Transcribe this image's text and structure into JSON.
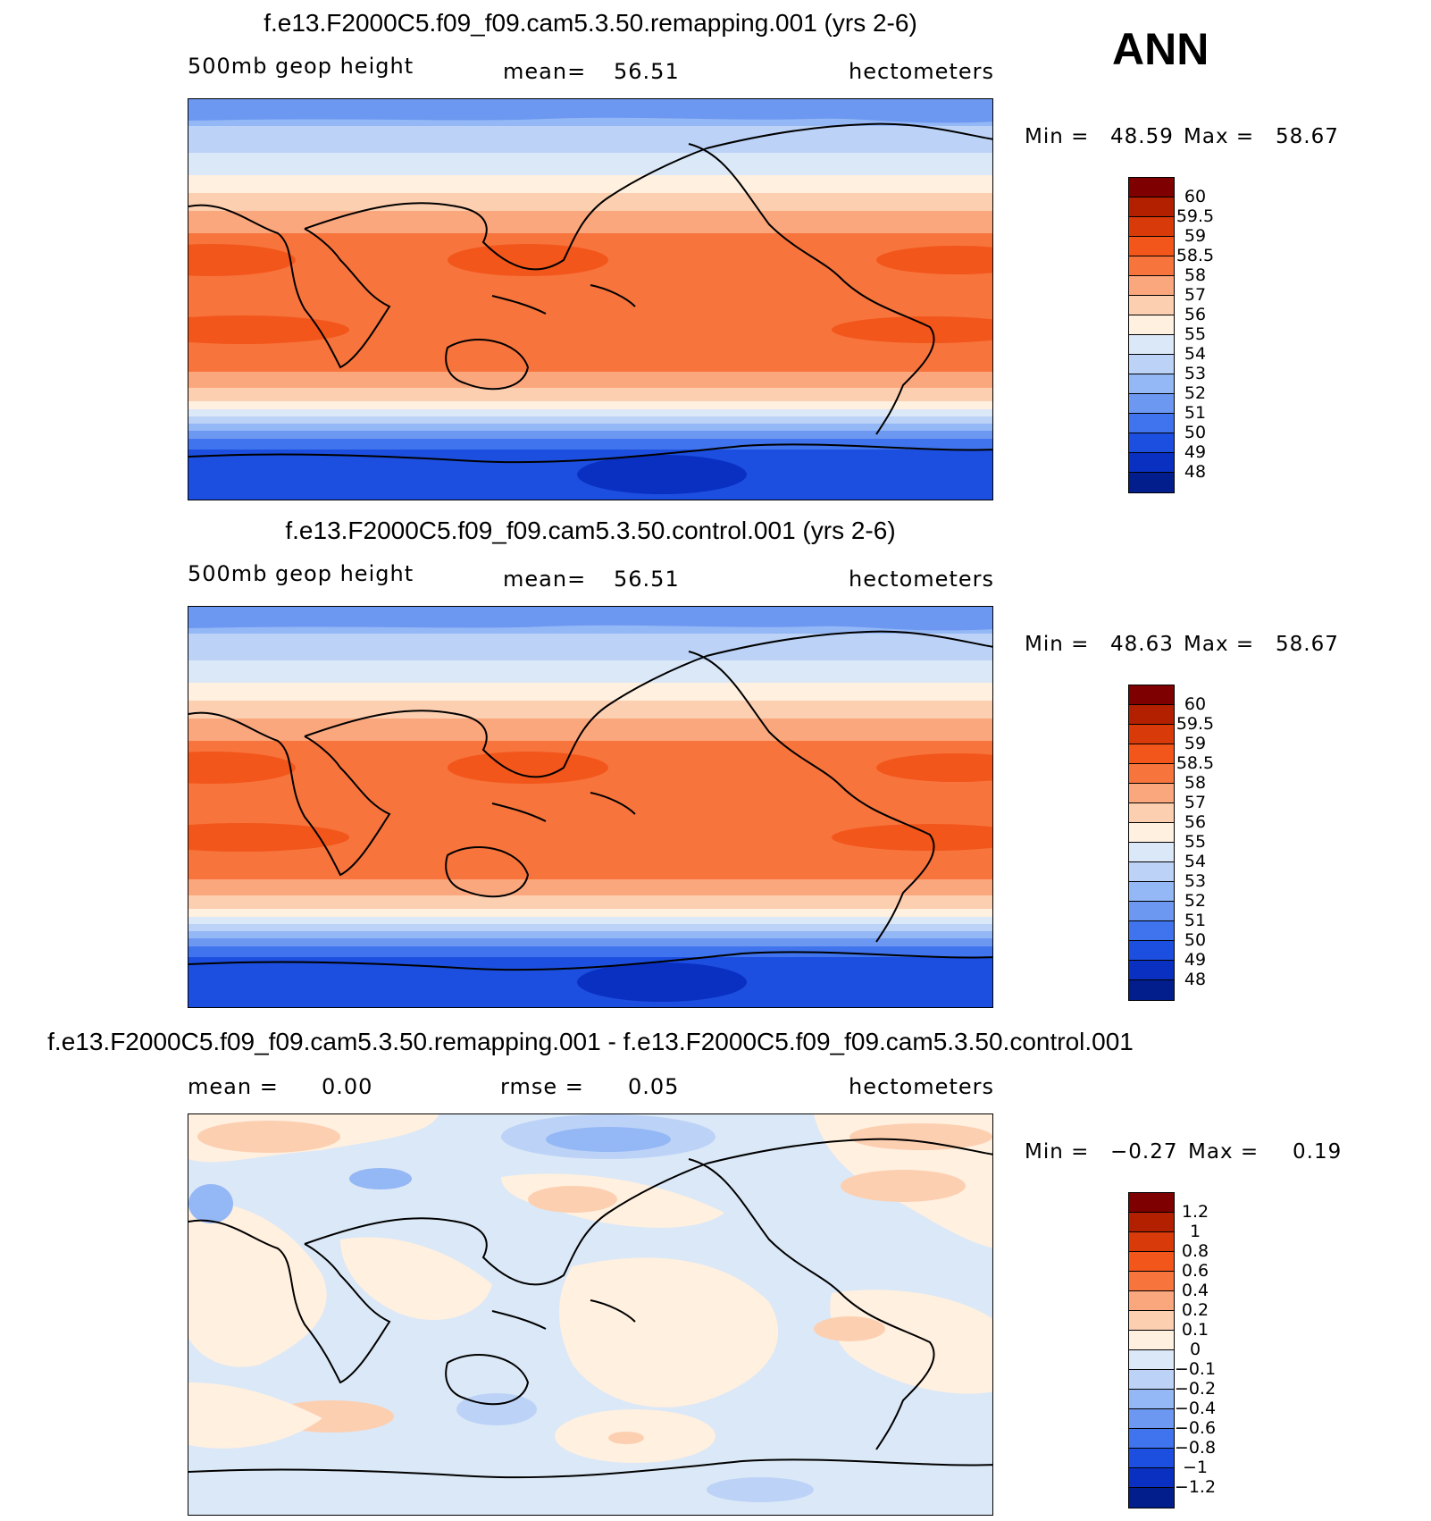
{
  "season": "ANN",
  "panels": [
    {
      "title": "f.e13.F2000C5.f09_f09.cam5.3.50.remapping.001 (yrs 2-6)",
      "left_label": "500mb geop height",
      "stat_label": "mean=",
      "stat_value": "56.51",
      "units": "hectometers",
      "min_label": "Min =",
      "min_value": "48.59",
      "max_label": "Max =",
      "max_value": "58.67"
    },
    {
      "title": "f.e13.F2000C5.f09_f09.cam5.3.50.control.001 (yrs 2-6)",
      "left_label": "500mb geop height",
      "stat_label": "mean=",
      "stat_value": "56.51",
      "units": "hectometers",
      "min_label": "Min =",
      "min_value": "48.63",
      "max_label": "Max =",
      "max_value": "58.67"
    },
    {
      "title": "f.e13.F2000C5.f09_f09.cam5.3.50.remapping.001 - f.e13.F2000C5.f09_f09.cam5.3.50.control.001",
      "left_label": "mean =",
      "left_value": "0.00",
      "stat_label": "rmse =",
      "stat_value": "0.05",
      "units": "hectometers",
      "min_label": "Min =",
      "min_value": "−0.27",
      "max_label": "Max =",
      "max_value": "0.19"
    }
  ],
  "chart_data": [
    {
      "type": "heatmap",
      "title": "f.e13.F2000C5.f09_f09.cam5.3.50.remapping.001 (yrs 2-6)",
      "variable": "500mb geop height",
      "units": "hectometers",
      "mean": 56.51,
      "min": 48.59,
      "max": 58.67,
      "colorbar_levels": [
        "60",
        "59.5",
        "59",
        "58.5",
        "58",
        "57",
        "56",
        "55",
        "54",
        "53",
        "52",
        "51",
        "50",
        "49",
        "48"
      ],
      "colorbar_colors": [
        "#7f0000",
        "#b22000",
        "#d83a0a",
        "#f2561b",
        "#f7743c",
        "#fba77e",
        "#fdcfb1",
        "#fff0e0",
        "#dbe8f7",
        "#bcd3f7",
        "#94b7f5",
        "#6c98f2",
        "#3f74ee",
        "#1c4fe0",
        "#0a30c2",
        "#011e8c"
      ]
    },
    {
      "type": "heatmap",
      "title": "f.e13.F2000C5.f09_f09.cam5.3.50.control.001 (yrs 2-6)",
      "variable": "500mb geop height",
      "units": "hectometers",
      "mean": 56.51,
      "min": 48.63,
      "max": 58.67,
      "colorbar_levels": [
        "60",
        "59.5",
        "59",
        "58.5",
        "58",
        "57",
        "56",
        "55",
        "54",
        "53",
        "52",
        "51",
        "50",
        "49",
        "48"
      ],
      "colorbar_colors": [
        "#7f0000",
        "#b22000",
        "#d83a0a",
        "#f2561b",
        "#f7743c",
        "#fba77e",
        "#fdcfb1",
        "#fff0e0",
        "#dbe8f7",
        "#bcd3f7",
        "#94b7f5",
        "#6c98f2",
        "#3f74ee",
        "#1c4fe0",
        "#0a30c2",
        "#011e8c"
      ]
    },
    {
      "type": "heatmap",
      "title": "f.e13.F2000C5.f09_f09.cam5.3.50.remapping.001 - f.e13.F2000C5.f09_f09.cam5.3.50.control.001",
      "units": "hectometers",
      "mean": 0.0,
      "rmse": 0.05,
      "min": -0.27,
      "max": 0.19,
      "colorbar_levels": [
        "1.2",
        "1",
        "0.8",
        "0.6",
        "0.4",
        "0.2",
        "0.1",
        "0",
        "−0.1",
        "−0.2",
        "−0.4",
        "−0.6",
        "−0.8",
        "−1",
        "−1.2"
      ],
      "colorbar_colors": [
        "#7f0000",
        "#b22000",
        "#d83a0a",
        "#f2561b",
        "#f7743c",
        "#fba77e",
        "#fdcfb1",
        "#fff0e0",
        "#dbe8f7",
        "#bcd3f7",
        "#94b7f5",
        "#6c98f2",
        "#3f74ee",
        "#1c4fe0",
        "#0a30c2",
        "#011e8c"
      ]
    }
  ]
}
